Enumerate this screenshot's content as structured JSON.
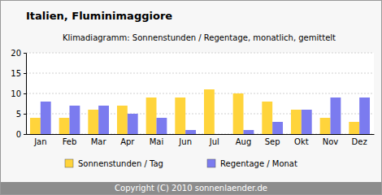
{
  "chart_data": {
    "type": "bar",
    "title": "Italien, Fluminimaggiore",
    "subtitle": "Klimadiagramm: Sonnenstunden / Regentage, monatlich, gemittelt",
    "categories": [
      "Jan",
      "Feb",
      "Mar",
      "Apr",
      "Mai",
      "Jun",
      "Jul",
      "Aug",
      "Sep",
      "Okt",
      "Nov",
      "Dez"
    ],
    "series": [
      {
        "name": "Sonnenstunden / Tag",
        "color": "#ffd43b",
        "values": [
          4,
          4,
          6,
          7,
          9,
          9,
          11,
          10,
          8,
          6,
          4,
          3
        ]
      },
      {
        "name": "Regentage / Monat",
        "color": "#7b7bef",
        "values": [
          8,
          7,
          7,
          5,
          4,
          1,
          0,
          1,
          3,
          6,
          9,
          9
        ]
      }
    ],
    "ylim": [
      0,
      20
    ],
    "yticks": [
      0,
      5,
      10,
      15,
      20
    ],
    "grid": true,
    "legend": "bottom",
    "annotations": [
      "Copyright (C) 2010 sonnenlaender.de"
    ]
  }
}
